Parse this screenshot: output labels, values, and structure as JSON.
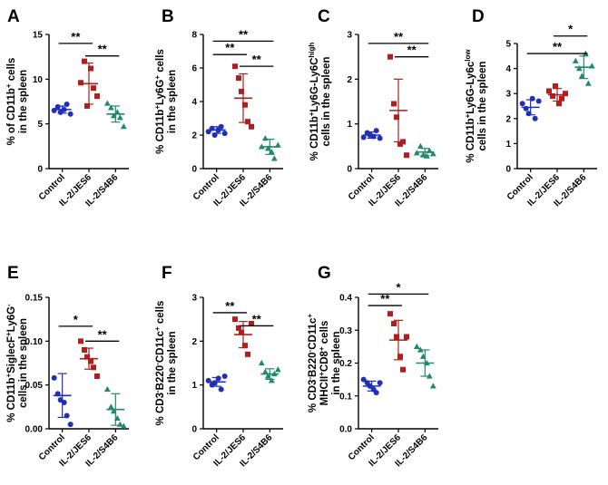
{
  "colors": {
    "control": "#1f2fb8",
    "jes6": "#b01e1e",
    "s4b6": "#1f8a6a"
  },
  "chart_data": [
    {
      "panel": "A",
      "type": "scatter",
      "categories": [
        "Control",
        "IL-2/JES6",
        "IL-2/S4B6"
      ],
      "ylabel_lines": [
        [
          "% of CD11b",
          "+",
          " cells"
        ],
        [
          "in the spleen"
        ]
      ],
      "ylim": [
        0,
        15
      ],
      "yticks": [
        "0",
        "5",
        "10",
        "15"
      ],
      "points": [
        [
          6.5,
          6.9,
          6.3,
          6.6,
          7.2,
          6.1
        ],
        [
          9.6,
          12.0,
          7.0,
          11.2,
          9.0,
          8.1
        ],
        [
          7.3,
          6.8,
          5.9,
          6.3,
          5.7,
          4.7
        ]
      ],
      "means": [
        6.6,
        9.5,
        6.1
      ],
      "sds": [
        0.4,
        2.3,
        0.9
      ],
      "sig": [
        {
          "from": 0,
          "to": 1,
          "label": "**",
          "y": 14.0
        },
        {
          "from": 1,
          "to": 2,
          "label": "**",
          "y": 12.6
        }
      ]
    },
    {
      "panel": "B",
      "type": "scatter",
      "categories": [
        "Control",
        "IL-2/JES6",
        "IL-2/S4B6"
      ],
      "ylabel_lines": [
        [
          "% CD11b",
          "+",
          "Ly6G",
          "+",
          " cells"
        ],
        [
          "in the spleen"
        ]
      ],
      "ylim": [
        0,
        8
      ],
      "yticks": [
        "0",
        "2",
        "4",
        "6",
        "8"
      ],
      "points": [
        [
          2.2,
          2.4,
          2.0,
          2.3,
          2.5,
          2.1
        ],
        [
          6.1,
          5.4,
          4.6,
          3.8,
          2.8,
          2.5
        ],
        [
          1.3,
          1.8,
          1.2,
          1.0,
          0.6,
          1.4
        ]
      ],
      "means": [
        2.3,
        4.2,
        1.3
      ],
      "sds": [
        0.2,
        1.45,
        0.45
      ],
      "sig": [
        {
          "from": 0,
          "to": 2,
          "label": "**",
          "y": 7.6
        },
        {
          "from": 0,
          "to": 1,
          "label": "**",
          "y": 6.8
        },
        {
          "from": 1,
          "to": 2,
          "label": "**",
          "y": 6.1
        }
      ]
    },
    {
      "panel": "C",
      "type": "scatter",
      "categories": [
        "Control",
        "IL-2/JES6",
        "IL-2/S4B6"
      ],
      "ylabel_lines": [
        [
          "% CD11b",
          "+",
          "Ly6G-Ly6C",
          "high"
        ],
        [
          "cells in the spleen"
        ]
      ],
      "ylim": [
        0,
        3
      ],
      "yticks": [
        "0",
        "1",
        "2",
        "3"
      ],
      "points": [
        [
          0.7,
          0.8,
          0.75,
          0.72,
          0.85,
          0.68
        ],
        [
          2.5,
          1.45,
          1.15,
          0.55,
          0.6,
          0.3
        ],
        [
          0.35,
          0.5,
          0.3,
          0.28,
          0.4,
          0.33
        ]
      ],
      "means": [
        0.75,
        1.3,
        0.37
      ],
      "sds": [
        0.07,
        0.7,
        0.08
      ],
      "sig": [
        {
          "from": 0,
          "to": 2,
          "label": "**",
          "y": 2.8
        },
        {
          "from": 1,
          "to": 2,
          "label": "**",
          "y": 2.5
        }
      ]
    },
    {
      "panel": "D",
      "type": "scatter",
      "categories": [
        "Control",
        "IL-2/JES6",
        "IL-2/S4B6"
      ],
      "ylabel_lines": [
        [
          "% CD11b",
          "+",
          "Ly6G-Ly6c",
          "low"
        ],
        [
          "cells in the spleen"
        ]
      ],
      "ylim": [
        0,
        5
      ],
      "yticks": [
        "0",
        "1",
        "2",
        "3",
        "4",
        "5"
      ],
      "points": [
        [
          2.6,
          2.4,
          2.2,
          2.8,
          2.0,
          2.7
        ],
        [
          3.1,
          2.9,
          3.3,
          2.6,
          2.8,
          3.0
        ],
        [
          4.3,
          4.0,
          3.7,
          4.6,
          3.4,
          4.1
        ]
      ],
      "means": [
        2.45,
        2.95,
        4.05
      ],
      "sds": [
        0.3,
        0.25,
        0.45
      ],
      "sig": [
        {
          "from": 1,
          "to": 2,
          "label": "*",
          "y": 5.3
        },
        {
          "from": 0,
          "to": 2,
          "label": "**",
          "y": 4.6
        }
      ]
    },
    {
      "panel": "E",
      "type": "scatter",
      "categories": [
        "Control",
        "IL-2/JES6",
        "IL-2/S4B6"
      ],
      "ylabel_lines": [
        [
          "% CD11b",
          "+",
          "SiglecF",
          "+",
          "Ly6G",
          "-"
        ],
        [
          "cells in the spleen"
        ]
      ],
      "ylim": [
        0,
        0.15
      ],
      "yticks": [
        "0.00",
        "0.05",
        "0.10",
        "0.15"
      ],
      "points": [
        [
          0.058,
          0.04,
          0.033,
          0.03,
          0.015,
          0.005
        ],
        [
          0.1,
          0.09,
          0.082,
          0.077,
          0.07,
          0.06
        ],
        [
          0.045,
          0.025,
          0.02,
          0.012,
          0.005,
          0.003
        ]
      ],
      "means": [
        0.038,
        0.08,
        0.022
      ],
      "sds": [
        0.025,
        0.012,
        0.018
      ],
      "sig": [
        {
          "from": 0,
          "to": 1,
          "label": "*",
          "y": 0.117
        },
        {
          "from": 1,
          "to": 2,
          "label": "**",
          "y": 0.1
        }
      ]
    },
    {
      "panel": "F",
      "type": "scatter",
      "categories": [
        "Control",
        "IL-2/JES6",
        "IL-2/S4B6"
      ],
      "ylabel_lines": [
        [
          "% CD3",
          "-",
          "B220",
          "-",
          "CD11c",
          "+",
          " cells"
        ],
        [
          "in the spleen"
        ]
      ],
      "ylim": [
        0,
        3
      ],
      "yticks": [
        "0",
        "1",
        "2",
        "3"
      ],
      "points": [
        [
          1.1,
          1.0,
          1.05,
          1.15,
          0.9,
          1.2
        ],
        [
          2.5,
          2.3,
          2.2,
          1.9,
          1.7,
          2.4
        ],
        [
          1.5,
          1.3,
          1.2,
          1.1,
          1.25,
          1.35
        ]
      ],
      "means": [
        1.07,
        2.15,
        1.25
      ],
      "sds": [
        0.1,
        0.3,
        0.12
      ],
      "sig": [
        {
          "from": 0,
          "to": 1,
          "label": "**",
          "y": 2.65
        },
        {
          "from": 1,
          "to": 2,
          "label": "**",
          "y": 2.35
        }
      ]
    },
    {
      "panel": "G",
      "type": "scatter",
      "categories": [
        "Control",
        "IL-2/JES6",
        "IL-2/S4B6"
      ],
      "ylabel_lines": [
        [
          "% CD3",
          "-",
          "B220",
          "-",
          "CD11c",
          "+"
        ],
        [
          "MHCII",
          "+",
          "CD8",
          "+",
          " cells"
        ],
        [
          "in the spleen"
        ]
      ],
      "ylim": [
        0,
        0.4
      ],
      "yticks": [
        "0.0",
        "0.1",
        "0.2",
        "0.3",
        "0.4"
      ],
      "points": [
        [
          0.15,
          0.14,
          0.13,
          0.12,
          0.11,
          0.14
        ],
        [
          0.35,
          0.32,
          0.28,
          0.22,
          0.18,
          0.28
        ],
        [
          0.25,
          0.24,
          0.22,
          0.2,
          0.16,
          0.13
        ]
      ],
      "means": [
        0.13,
        0.27,
        0.2
      ],
      "sds": [
        0.015,
        0.06,
        0.04
      ],
      "sig": [
        {
          "from": 0,
          "to": 2,
          "label": "*",
          "y": 0.41
        },
        {
          "from": 0,
          "to": 1,
          "label": "**",
          "y": 0.375
        }
      ]
    }
  ]
}
